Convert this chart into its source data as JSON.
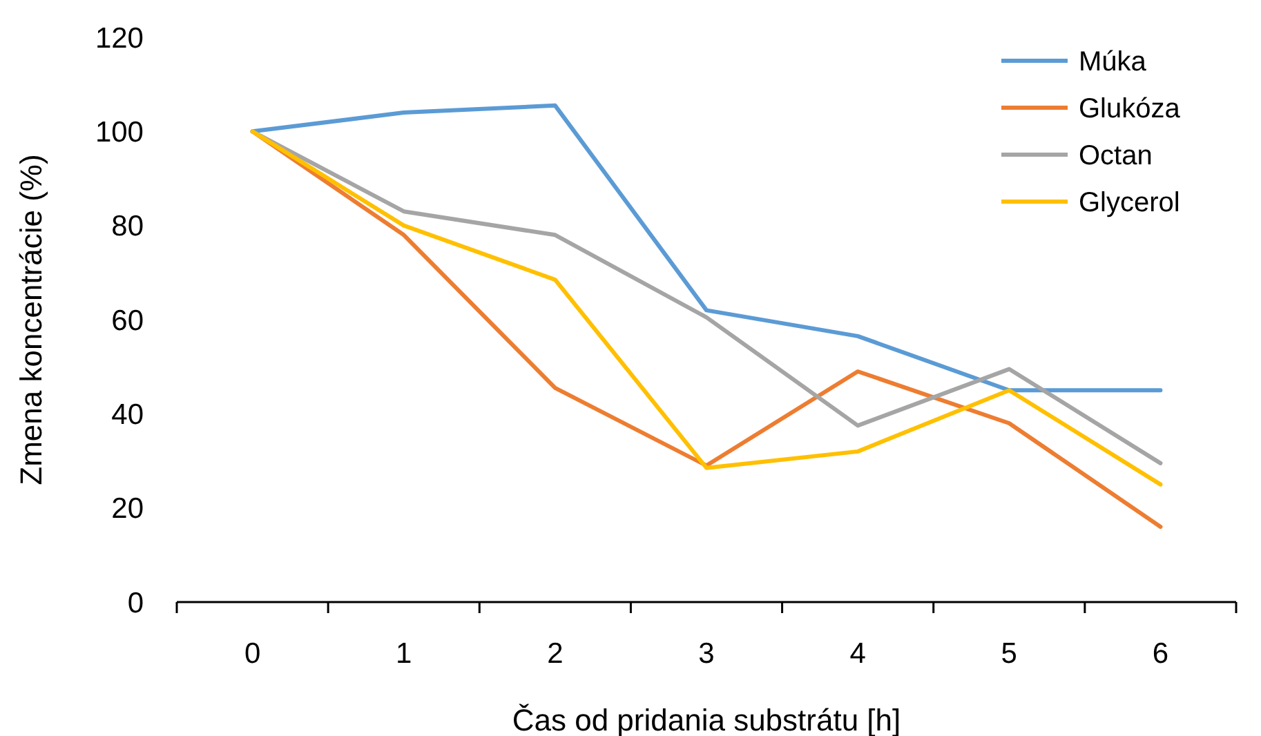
{
  "chart_data": {
    "type": "line",
    "xlabel": "Čas od pridania substrátu [h]",
    "ylabel": "Zmena koncentrácie (%)",
    "categories": [
      "0",
      "1",
      "2",
      "3",
      "4",
      "5",
      "6"
    ],
    "series": [
      {
        "name": "Múka",
        "color": "#5b9bd5",
        "values": [
          100,
          104,
          105.5,
          62,
          56.5,
          45,
          45
        ]
      },
      {
        "name": "Glukóza",
        "color": "#ed7d31",
        "values": [
          100,
          78,
          45.5,
          29,
          49,
          38,
          16
        ]
      },
      {
        "name": "Octan",
        "color": "#a5a5a5",
        "values": [
          100,
          83,
          78,
          60.5,
          37.5,
          49.5,
          29.5
        ]
      },
      {
        "name": "Glycerol",
        "color": "#ffc000",
        "values": [
          100,
          80,
          68.5,
          28.5,
          32,
          45,
          25
        ]
      }
    ],
    "ylim": [
      0,
      120
    ],
    "yticks": [
      0,
      20,
      40,
      60,
      80,
      100,
      120
    ],
    "grid": false,
    "legend": "top right",
    "marker": "none",
    "line_style": "solid"
  }
}
